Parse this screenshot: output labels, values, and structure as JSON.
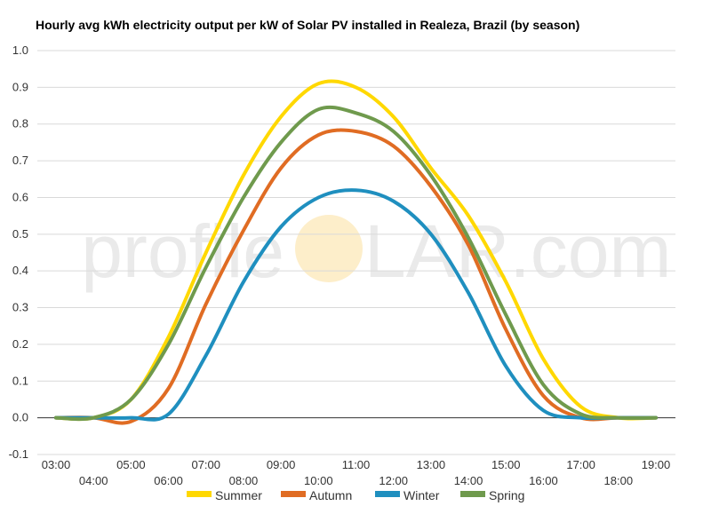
{
  "chart_data": {
    "type": "line",
    "title": "Hourly avg kWh electricity output per kW of Solar PV installed in Realeza, Brazil (by season)",
    "xlabel": "",
    "ylabel": "",
    "x_labels": [
      "03:00",
      "04:00",
      "05:00",
      "06:00",
      "07:00",
      "08:00",
      "09:00",
      "10:00",
      "11:00",
      "12:00",
      "13:00",
      "14:00",
      "15:00",
      "16:00",
      "17:00",
      "18:00",
      "19:00"
    ],
    "y_ticks": [
      "-0.1",
      "0.0",
      "0.1",
      "0.2",
      "0.3",
      "0.4",
      "0.5",
      "0.6",
      "0.7",
      "0.8",
      "0.9",
      "1.0"
    ],
    "ylim": [
      -0.1,
      1.0
    ],
    "grid": true,
    "legend_position": "bottom",
    "series": [
      {
        "name": "Summer",
        "color": "#ffd800",
        "values": [
          0.0,
          0.0,
          0.05,
          0.22,
          0.45,
          0.66,
          0.82,
          0.91,
          0.9,
          0.82,
          0.68,
          0.55,
          0.37,
          0.16,
          0.03,
          0.0,
          0.0
        ]
      },
      {
        "name": "Autumn",
        "color": "#e06c23",
        "values": [
          0.0,
          0.0,
          -0.01,
          0.08,
          0.31,
          0.51,
          0.68,
          0.77,
          0.78,
          0.74,
          0.63,
          0.47,
          0.24,
          0.06,
          0.0,
          0.0,
          0.0
        ]
      },
      {
        "name": "Winter",
        "color": "#1f8fbf",
        "values": [
          0.0,
          0.0,
          0.0,
          0.01,
          0.17,
          0.37,
          0.52,
          0.6,
          0.62,
          0.59,
          0.5,
          0.34,
          0.14,
          0.02,
          0.0,
          0.0,
          0.0
        ]
      },
      {
        "name": "Spring",
        "color": "#6f9a4d",
        "values": [
          0.0,
          0.0,
          0.05,
          0.2,
          0.41,
          0.6,
          0.75,
          0.84,
          0.83,
          0.78,
          0.66,
          0.49,
          0.28,
          0.09,
          0.01,
          0.0,
          0.0
        ]
      }
    ]
  },
  "watermark": {
    "text_left": "profile",
    "text_right": "LAR.com",
    "sun_color": "#fbe3a6"
  }
}
